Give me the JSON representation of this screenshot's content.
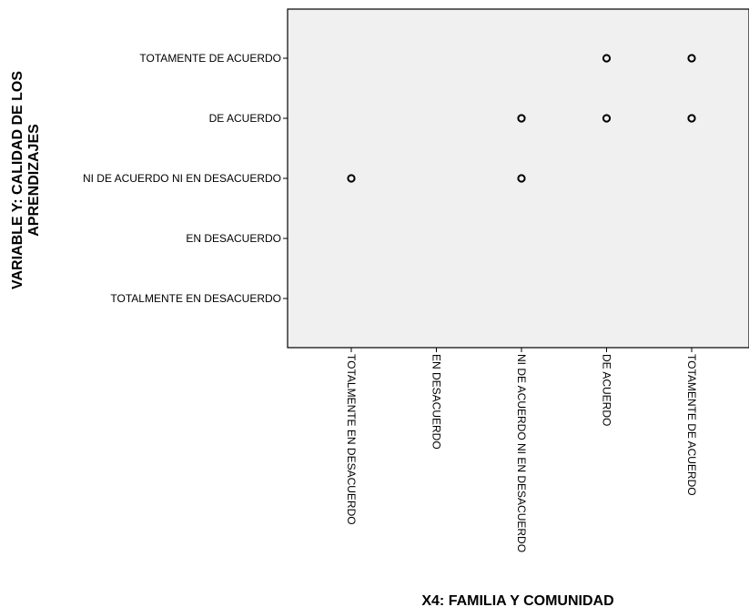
{
  "chart_data": {
    "type": "scatter",
    "categories": [
      "TOTALMENTE EN DESACUERDO",
      "EN DESACUERDO",
      "NI DE ACUERDO NI EN DESACUERDO",
      "DE ACUERDO",
      "TOTAMENTE DE ACUERDO"
    ],
    "xlabel": "X4: FAMILIA Y COMUNIDAD",
    "ylabel_lines": [
      "VARIABLE Y:  CALIDAD DE LOS",
      "APRENDIZAJES"
    ],
    "x_ticks": [
      "TOTALMENTE EN DESACUERDO",
      "EN DESACUERDO",
      "NI DE ACUERDO NI EN DESACUERDO",
      "DE ACUERDO",
      "TOTAMENTE DE ACUERDO"
    ],
    "y_ticks": [
      "TOTALMENTE EN DESACUERDO",
      "EN DESACUERDO",
      "NI DE ACUERDO NI EN DESACUERDO",
      "DE ACUERDO",
      "TOTAMENTE DE ACUERDO"
    ],
    "points": [
      {
        "x": "TOTALMENTE EN DESACUERDO",
        "y": "NI DE ACUERDO NI EN DESACUERDO"
      },
      {
        "x": "NI DE ACUERDO NI EN DESACUERDO",
        "y": "NI DE ACUERDO NI EN DESACUERDO"
      },
      {
        "x": "NI DE ACUERDO NI EN DESACUERDO",
        "y": "DE ACUERDO"
      },
      {
        "x": "DE ACUERDO",
        "y": "DE ACUERDO"
      },
      {
        "x": "DE ACUERDO",
        "y": "TOTAMENTE DE ACUERDO"
      },
      {
        "x": "TOTAMENTE DE ACUERDO",
        "y": "DE ACUERDO"
      },
      {
        "x": "TOTAMENTE DE ACUERDO",
        "y": "TOTAMENTE DE ACUERDO"
      }
    ],
    "grid": false,
    "plot_background": "#f0f0f0",
    "marker_style": "hollow-circle"
  }
}
